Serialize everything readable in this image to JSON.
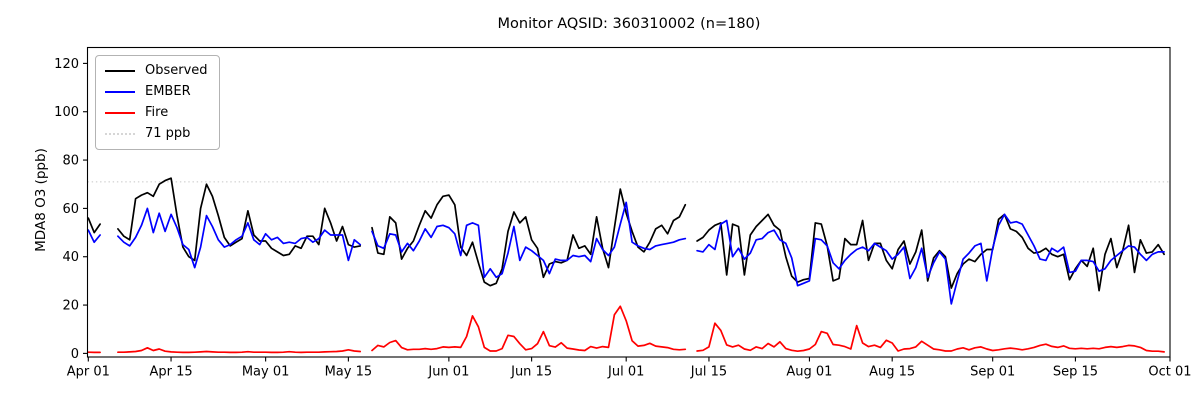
{
  "figure": {
    "background": "#ffffff"
  },
  "chart_data": {
    "type": "line",
    "title": "Monitor AQSID: 360310002 (n=180)",
    "xlabel": "",
    "ylabel": "MDA8 O3 (ppb)",
    "x_start_date": "Apr 01",
    "x_end_date": "Oct 01",
    "x_unit": "day-of-season (Apr 01 = 0)",
    "n_label": "n=180",
    "ylim": [
      -1.5,
      126.5
    ],
    "y_ticks": [
      0,
      20,
      40,
      60,
      80,
      100,
      120
    ],
    "x_ticks": [
      {
        "label": "Apr 01",
        "day": 0
      },
      {
        "label": "Apr 15",
        "day": 14
      },
      {
        "label": "May 01",
        "day": 30
      },
      {
        "label": "May 15",
        "day": 44
      },
      {
        "label": "Jun 01",
        "day": 61
      },
      {
        "label": "Jun 15",
        "day": 75
      },
      {
        "label": "Jul 01",
        "day": 91
      },
      {
        "label": "Jul 15",
        "day": 105
      },
      {
        "label": "Aug 01",
        "day": 122
      },
      {
        "label": "Aug 15",
        "day": 136
      },
      {
        "label": "Sep 01",
        "day": 153
      },
      {
        "label": "Sep 15",
        "day": 167
      },
      {
        "label": "Oct 01",
        "day": 183
      }
    ],
    "grid": false,
    "legend_position": "upper left",
    "threshold": {
      "label": "71 ppb",
      "value": 71,
      "color": "#d6d6d6",
      "style": "dotted"
    },
    "series": [
      {
        "name": "Observed",
        "color": "#000000",
        "values": [
          56,
          50,
          53.5,
          null,
          null,
          51.5,
          48.5,
          47,
          64,
          65.5,
          66.5,
          65,
          70,
          71.5,
          72.5,
          57,
          44,
          40,
          38.5,
          60,
          70,
          65,
          57,
          48,
          44.5,
          46,
          47.5,
          59,
          49,
          46.5,
          46.5,
          43.5,
          42,
          40.5,
          41,
          44.5,
          43.5,
          48.5,
          48.5,
          45,
          60,
          54,
          46.5,
          52.5,
          45,
          44,
          44.5,
          null,
          52,
          41.5,
          41,
          56.5,
          54,
          39,
          43.5,
          46.5,
          53,
          59,
          56,
          61.5,
          65,
          65.5,
          61.5,
          44,
          40.5,
          46,
          37.5,
          29.5,
          28,
          29,
          35,
          50.5,
          58.5,
          54,
          56.5,
          47,
          43.5,
          31.5,
          37,
          38,
          37.5,
          38.5,
          49,
          43.5,
          44.5,
          41,
          56.5,
          43.5,
          35.5,
          52,
          68,
          58,
          50.5,
          44,
          42,
          46,
          51.5,
          53,
          49.5,
          55,
          56.5,
          61.5,
          null,
          46.5,
          48,
          51,
          53,
          54,
          32.5,
          53.5,
          52.5,
          32.5,
          49,
          52.5,
          55,
          57.5,
          53,
          51,
          40,
          32,
          29.5,
          30.5,
          31,
          54,
          53.5,
          44.5,
          30,
          31,
          47.5,
          45,
          45,
          55,
          38.5,
          45.5,
          45.5,
          38.5,
          35,
          43,
          46.5,
          37,
          42,
          51,
          30,
          39.5,
          42.5,
          40,
          27,
          33,
          37,
          39,
          38,
          41,
          43,
          43,
          55.5,
          57.5,
          51.5,
          50.5,
          48,
          43.5,
          41.5,
          42,
          43.5,
          41,
          40,
          41,
          30.5,
          35,
          38.5,
          36,
          43.5,
          26,
          41,
          47.5,
          35.5,
          42.5,
          53,
          33.5,
          47,
          41.5,
          42,
          45,
          41
        ]
      },
      {
        "name": "EMBER",
        "color": "#0000ff",
        "values": [
          51,
          46,
          49,
          null,
          null,
          48.5,
          46,
          44.5,
          48,
          53,
          60,
          50,
          58,
          50.5,
          57.5,
          52,
          45,
          43,
          35.5,
          44,
          57,
          52.5,
          47,
          44,
          45,
          47,
          48.5,
          54,
          47,
          45,
          49.5,
          47,
          48,
          45.5,
          46,
          45.5,
          47.5,
          48,
          46,
          47.5,
          51,
          49,
          49,
          49,
          38.5,
          47,
          45,
          null,
          50.5,
          44.5,
          43.5,
          49.5,
          49,
          42,
          45.5,
          42.5,
          46.5,
          51.5,
          48,
          52.5,
          53,
          52,
          49.5,
          40.5,
          53,
          54,
          53,
          31.5,
          35,
          31.5,
          33,
          41.5,
          52.5,
          38.5,
          44,
          42.5,
          40.5,
          38.5,
          33,
          39,
          38.5,
          38.5,
          40.5,
          40,
          40.5,
          38,
          47.5,
          43,
          40.5,
          44,
          53.5,
          62.5,
          46,
          44.5,
          43.5,
          43,
          44.5,
          45,
          45.5,
          46,
          47,
          47.5,
          null,
          42.5,
          42,
          45,
          43,
          53.5,
          55,
          40,
          43.5,
          39,
          41.5,
          47,
          47.5,
          50,
          51,
          47,
          45.5,
          39.5,
          28,
          29,
          30,
          47.5,
          47,
          44.5,
          37.5,
          35,
          38.5,
          41,
          43,
          44,
          42.5,
          45.5,
          44,
          42.5,
          39,
          41,
          44,
          31,
          35.5,
          43.5,
          31.5,
          37.5,
          42,
          39,
          20.5,
          30,
          39,
          41.5,
          44.5,
          45.5,
          30,
          43.5,
          53,
          57.5,
          54,
          54.5,
          53.5,
          49,
          44.5,
          39,
          38.5,
          43.5,
          42,
          44,
          33.5,
          34,
          38.5,
          38.5,
          38,
          34,
          35,
          38.5,
          40.5,
          42.5,
          44.5,
          44,
          41,
          38.5,
          41,
          42,
          42
        ]
      },
      {
        "name": "Fire",
        "color": "#ff0000",
        "values": [
          0.5,
          0.4,
          0.4,
          null,
          null,
          0.5,
          0.5,
          0.6,
          0.8,
          1.2,
          2.3,
          1.2,
          1.8,
          0.9,
          0.6,
          0.5,
          0.4,
          0.4,
          0.5,
          0.6,
          0.8,
          0.6,
          0.5,
          0.5,
          0.4,
          0.4,
          0.5,
          0.7,
          0.5,
          0.5,
          0.5,
          0.4,
          0.4,
          0.5,
          0.7,
          0.5,
          0.4,
          0.5,
          0.5,
          0.5,
          0.6,
          0.7,
          0.8,
          1,
          1.5,
          1,
          0.8,
          null,
          1.2,
          3.3,
          2.7,
          4.5,
          5.3,
          2.4,
          1.5,
          1.7,
          1.7,
          2,
          1.7,
          2,
          2.7,
          2.5,
          2.7,
          2.5,
          7,
          15.5,
          11,
          2.5,
          1,
          1,
          2,
          7.5,
          7,
          4,
          1.5,
          2,
          4,
          9,
          3.2,
          2.6,
          4.4,
          2.2,
          1.8,
          1.4,
          1.2,
          2.8,
          2.2,
          2.8,
          2.5,
          16,
          19.5,
          13.5,
          5.2,
          3,
          3.3,
          4.2,
          3,
          2.7,
          2.4,
          1.7,
          1.5,
          1.7,
          null,
          1,
          1.3,
          2.7,
          12.5,
          9.5,
          3.5,
          2.7,
          3.4,
          1.8,
          1.3,
          2.7,
          2,
          4.1,
          2.7,
          4.8,
          2,
          1.3,
          0.9,
          1.2,
          1.8,
          3.7,
          9,
          8.3,
          3.7,
          3.4,
          2.8,
          1.8,
          11.5,
          4.3,
          2.8,
          3.4,
          2.5,
          5.4,
          4.3,
          1,
          1.8,
          2,
          2.7,
          5,
          3.4,
          1.8,
          1.5,
          1,
          1,
          1.8,
          2.3,
          1.5,
          2.3,
          2.7,
          1.8,
          1.2,
          1.5,
          1.9,
          2.2,
          1.9,
          1.5,
          1.9,
          2.5,
          3.3,
          3.8,
          2.9,
          2.5,
          3.1,
          2.1,
          1.9,
          2.1,
          1.9,
          2.1,
          1.9,
          2.5,
          2.8,
          2.5,
          2.8,
          3.3,
          3.1,
          2.5,
          1.2,
          0.9,
          0.9,
          0.6
        ]
      }
    ],
    "legend_entries": [
      "Observed",
      "EMBER",
      "Fire",
      "71 ppb"
    ]
  }
}
